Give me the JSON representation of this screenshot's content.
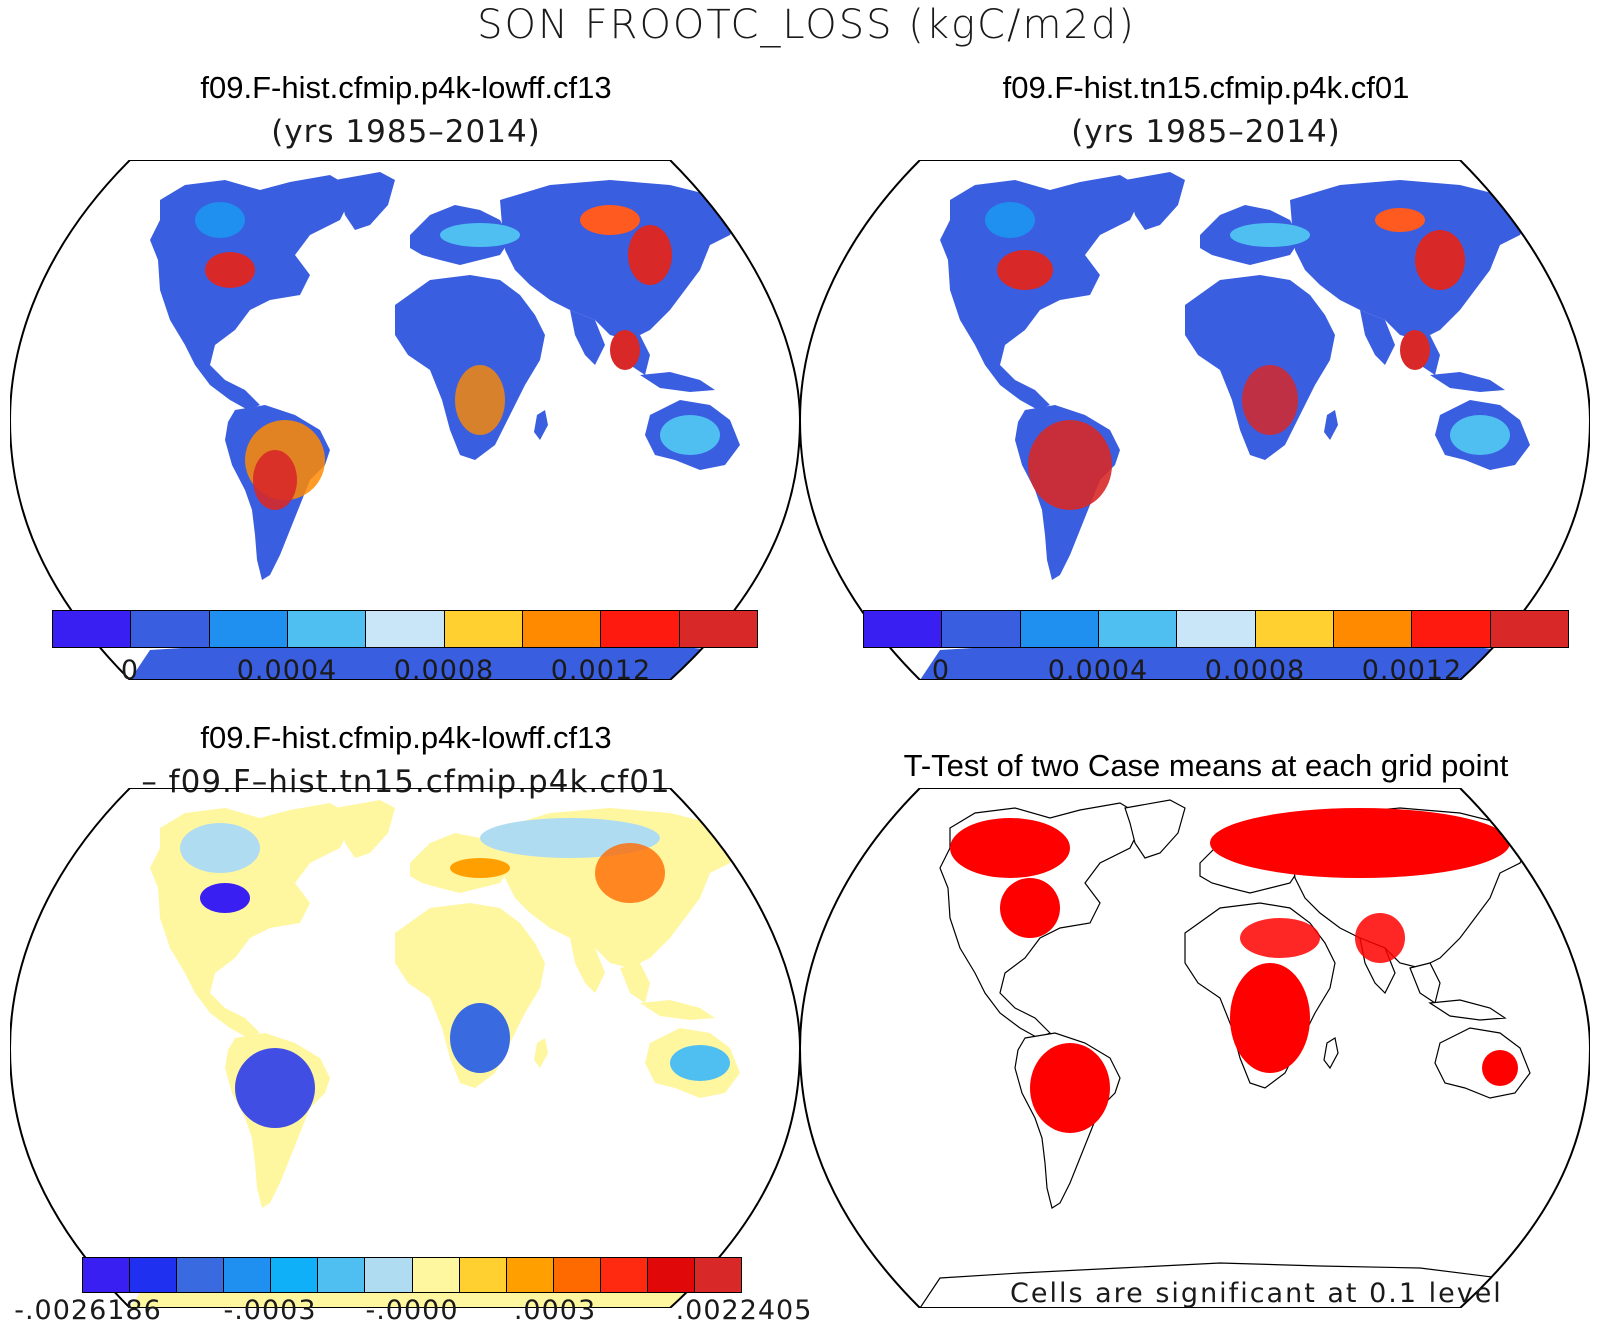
{
  "title": "SON FROOTC_LOSS (kgC/m2d)",
  "panels": {
    "case1": {
      "title": "f09.F-hist.cfmip.p4k-lowff.cf13",
      "subtitle": "(yrs 1985–2014)"
    },
    "case2": {
      "title": "f09.F-hist.tn15.cfmip.p4k.cf01",
      "subtitle": "(yrs 1985–2014)"
    },
    "diff": {
      "title": "f09.F-hist.cfmip.p4k-lowff.cf13",
      "subtitle": "– f09.F–hist.tn15.cfmip.p4k.cf01"
    },
    "ttest": {
      "title": "T-Test of two Case means at each grid point",
      "footnote": "Cells are significant at 0.1 level"
    }
  },
  "colorbars": {
    "case": {
      "colors": [
        "#3a1ff2",
        "#3a5ee0",
        "#1f8ff0",
        "#4fbff2",
        "#c8e6f8",
        "#ffd030",
        "#ff8a00",
        "#ff1a10",
        "#d82828"
      ],
      "ticks": [
        "0",
        "0.0004",
        "0.0008",
        "0.0012"
      ]
    },
    "diff": {
      "colors": [
        "#3a1ff2",
        "#1f30f0",
        "#3a6ae0",
        "#1f8ff0",
        "#10b0f8",
        "#4fbff2",
        "#b0dcf2",
        "#fff6a0",
        "#ffd030",
        "#ffa000",
        "#ff6a00",
        "#ff2a10",
        "#e00808",
        "#d82828"
      ],
      "ticks": [
        "-.0026186",
        "-.0003",
        "-.0000",
        ".0003",
        ".0022405"
      ]
    }
  },
  "map_colors": {
    "ocean": "#ffffff",
    "land_low": "#3a5ee0",
    "land_high": "#d82828",
    "diff_neutral": "#fff6a0",
    "diff_neg": "#b0dcf2",
    "significant": "#ff0000",
    "coast": "#000000"
  }
}
